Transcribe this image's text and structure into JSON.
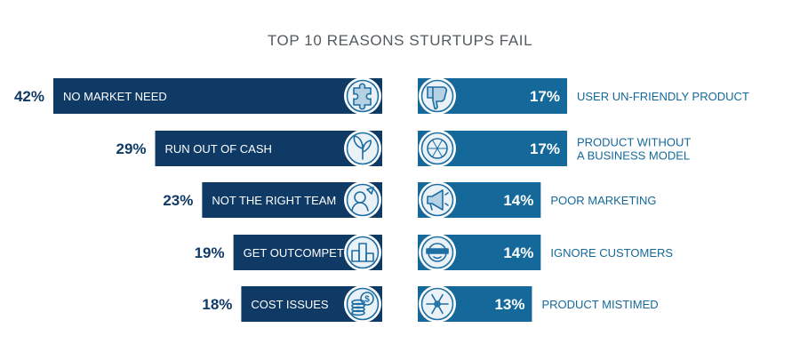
{
  "chart_data": {
    "type": "bar",
    "title": "TOP 10 REASONS STURTUPS FAIL",
    "colors": {
      "left": "#0f3a66",
      "right": "#14699a",
      "icon_ring": "#ffffff",
      "icon_fill": "#1d6ea3",
      "pct_text": "#0f3a66"
    },
    "left_series": [
      {
        "label": "NO MARKET NEED",
        "value": 42,
        "value_label": "42%",
        "icon": "puzzle-icon"
      },
      {
        "label": "RUN OUT OF CASH",
        "value": 29,
        "value_label": "29%",
        "icon": "money-plant-icon"
      },
      {
        "label": "NOT THE RIGHT TEAM",
        "value": 23,
        "value_label": "23%",
        "icon": "team-icon"
      },
      {
        "label": "GET OUTCOMPETED",
        "value": 19,
        "value_label": "19%",
        "icon": "podium-icon"
      },
      {
        "label": "COST ISSUES",
        "value": 18,
        "value_label": "18%",
        "icon": "coins-icon"
      }
    ],
    "right_series": [
      {
        "label": [
          "USER UN-FRIENDLY PRODUCT"
        ],
        "value": 17,
        "value_label": "17%",
        "icon": "thumbs-down-icon"
      },
      {
        "label": [
          "PRODUCT WITHOUT",
          "A BUSINESS MODEL"
        ],
        "value": 17,
        "value_label": "17%",
        "icon": "hamster-wheel-icon"
      },
      {
        "label": [
          "POOR MARKETING"
        ],
        "value": 14,
        "value_label": "14%",
        "icon": "megaphone-icon"
      },
      {
        "label": [
          "IGNORE CUSTOMERS"
        ],
        "value": 14,
        "value_label": "14%",
        "icon": "blindfold-icon"
      },
      {
        "label": [
          "PRODUCT MISTIMED"
        ],
        "value": 13,
        "value_label": "13%",
        "icon": "snowflake-icon"
      }
    ]
  }
}
